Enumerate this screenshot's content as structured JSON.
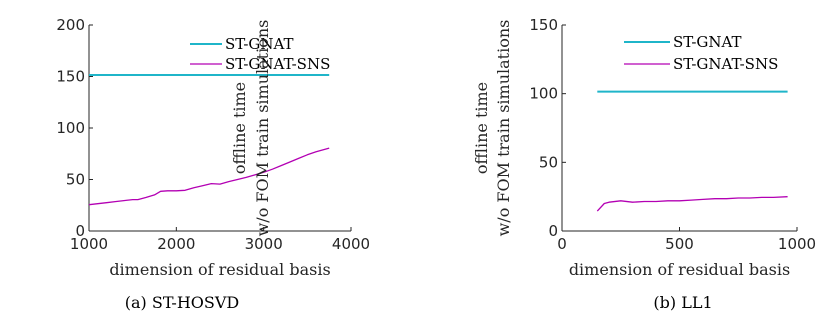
{
  "chart_data": [
    {
      "type": "line",
      "caption": "(a) ST-HOSVD",
      "xlabel": "dimension of residual basis",
      "ylabel_lines": [
        "offline time",
        "w/o FOM train simulations"
      ],
      "xlim": [
        1000,
        4000
      ],
      "ylim": [
        0,
        200
      ],
      "xticks": [
        1000,
        2000,
        3000,
        4000
      ],
      "yticks": [
        0,
        50,
        100,
        150,
        200
      ],
      "grid": false,
      "legend_position": "top-right",
      "series": [
        {
          "name": "ST-GNAT",
          "color": "#1fb5c9",
          "x": [
            1000,
            3750
          ],
          "y": [
            151.5,
            151.5
          ]
        },
        {
          "name": "ST-GNAT-SNS",
          "color": "#b300b3",
          "x": [
            1000,
            1100,
            1200,
            1300,
            1400,
            1500,
            1560,
            1650,
            1750,
            1820,
            1900,
            2000,
            2100,
            2200,
            2300,
            2400,
            2500,
            2600,
            2700,
            2800,
            2900,
            3000,
            3100,
            3200,
            3300,
            3400,
            3500,
            3600,
            3750
          ],
          "y": [
            25.5,
            26.5,
            27.5,
            28.5,
            29.5,
            30.5,
            30.5,
            32.5,
            35,
            38.5,
            39,
            39,
            39.5,
            42,
            44,
            46,
            45.5,
            48,
            50,
            52,
            54.5,
            57,
            60,
            63.5,
            67,
            70.5,
            74,
            77,
            80.5
          ]
        }
      ]
    },
    {
      "type": "line",
      "caption": "(b) LL1",
      "xlabel": "dimension of residual basis",
      "ylabel_lines": [
        "offline time",
        "w/o FOM train simulations"
      ],
      "xlim": [
        0,
        1000
      ],
      "ylim": [
        0,
        150
      ],
      "xticks": [
        0,
        500,
        1000
      ],
      "yticks": [
        0,
        50,
        100,
        150
      ],
      "grid": false,
      "legend_position": "top-right",
      "series": [
        {
          "name": "ST-GNAT",
          "color": "#1fb5c9",
          "x": [
            150,
            960
          ],
          "y": [
            101.5,
            101.5
          ]
        },
        {
          "name": "ST-GNAT-SNS",
          "color": "#b300b3",
          "x": [
            150,
            180,
            200,
            250,
            300,
            350,
            400,
            450,
            500,
            550,
            600,
            650,
            700,
            750,
            800,
            850,
            900,
            960
          ],
          "y": [
            14.5,
            20,
            21,
            22,
            21,
            21.5,
            21.5,
            22,
            22,
            22.5,
            23,
            23.5,
            23.5,
            24,
            24,
            24.5,
            24.5,
            25
          ]
        }
      ]
    }
  ]
}
